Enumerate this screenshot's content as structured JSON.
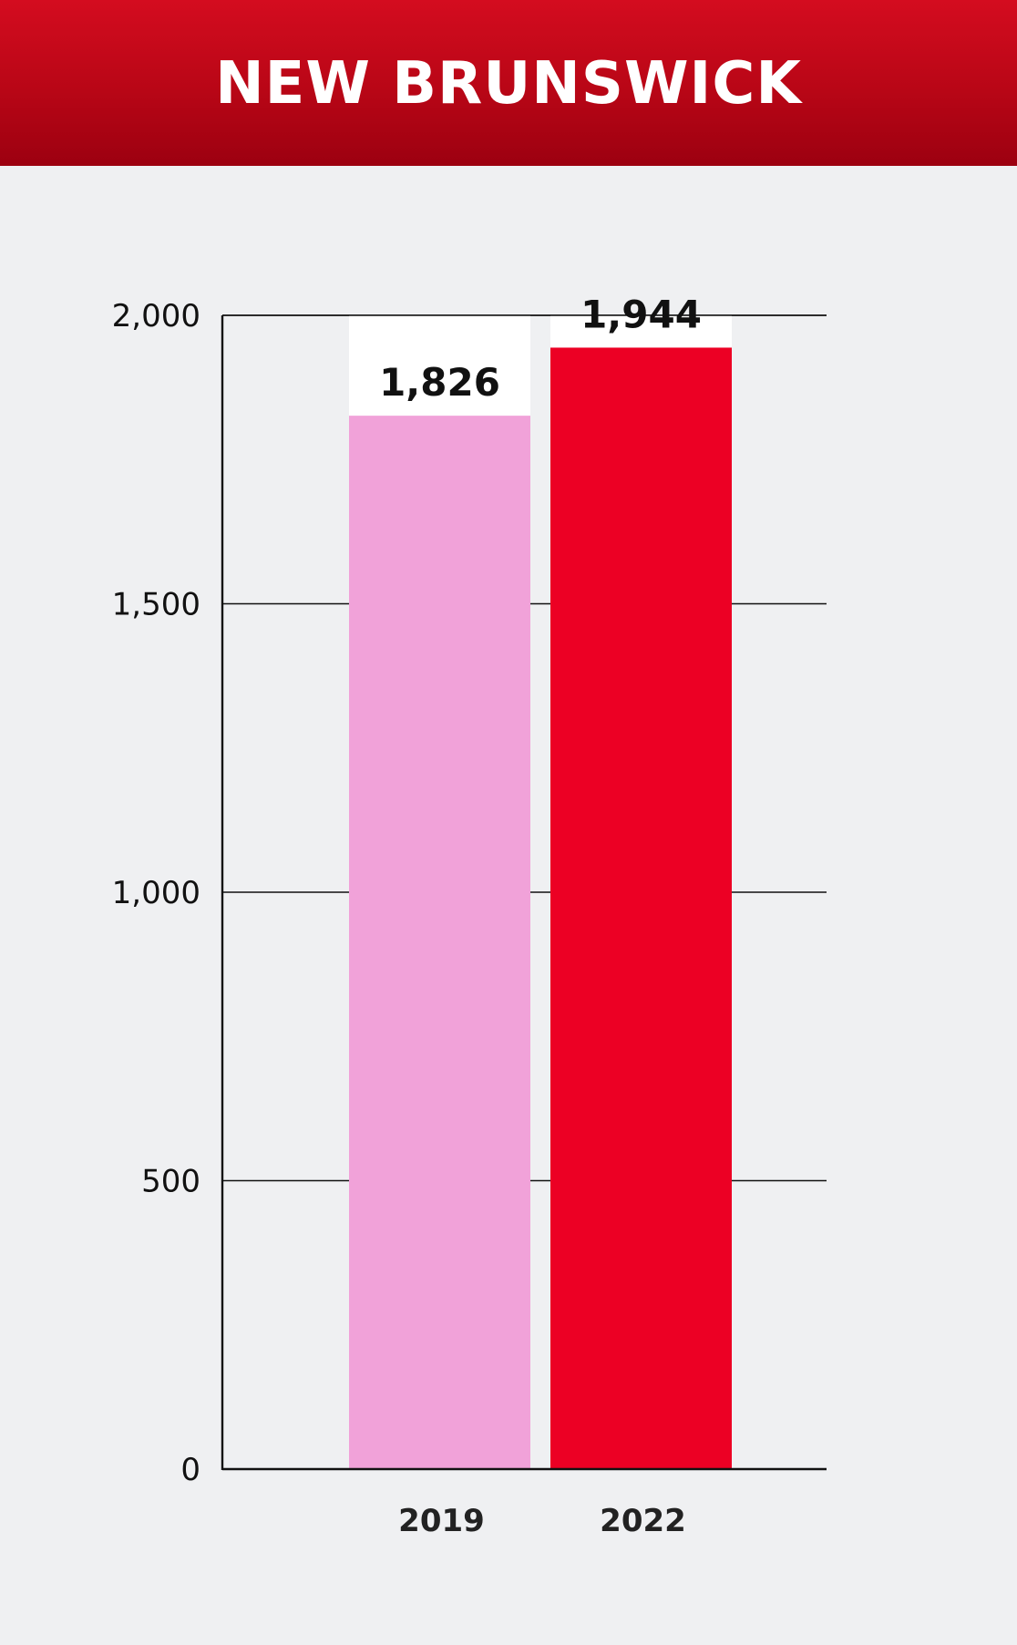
{
  "header": {
    "title": "NEW BRUNSWICK"
  },
  "colors": {
    "header_bg": "#c0081a",
    "background": "#eff0f2",
    "bar_2019": "#f1a2d9",
    "bar_2022": "#ec0024",
    "bar_headroom": "#ffffff"
  },
  "chart_data": {
    "type": "bar",
    "title": "NEW BRUNSWICK",
    "categories": [
      "2019",
      "2022"
    ],
    "values": [
      1826,
      1944
    ],
    "data_labels": [
      "1,826",
      "1,944"
    ],
    "ylim": [
      0,
      2000
    ],
    "yticks": [
      0,
      500,
      1000,
      1500,
      2000
    ],
    "ytick_labels": [
      "0",
      "500",
      "1,000",
      "1,500",
      "2,000"
    ],
    "grid": true,
    "legend": "none"
  }
}
